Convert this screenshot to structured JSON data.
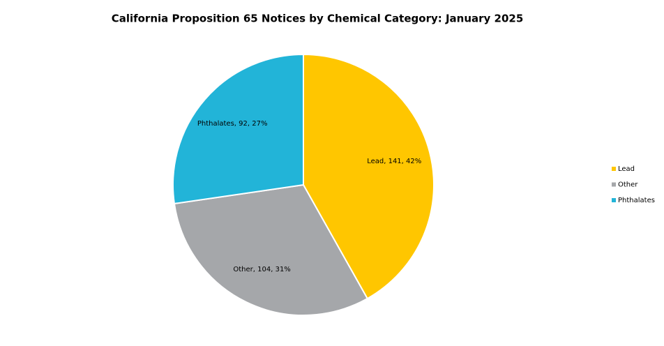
{
  "chart_data": {
    "type": "pie",
    "title": "California Proposition 65 Notices by Chemical Category: January 2025",
    "categories": [
      "Lead",
      "Other",
      "Phthalates"
    ],
    "values": [
      141,
      104,
      92
    ],
    "value_labels": [
      "Lead, 141, 42%",
      "Other, 104, 31%",
      "Phthalates, 92, 27%"
    ],
    "colors": [
      "#ffc600",
      "#a5a7aa",
      "#22b4d8"
    ],
    "legend": "right"
  }
}
